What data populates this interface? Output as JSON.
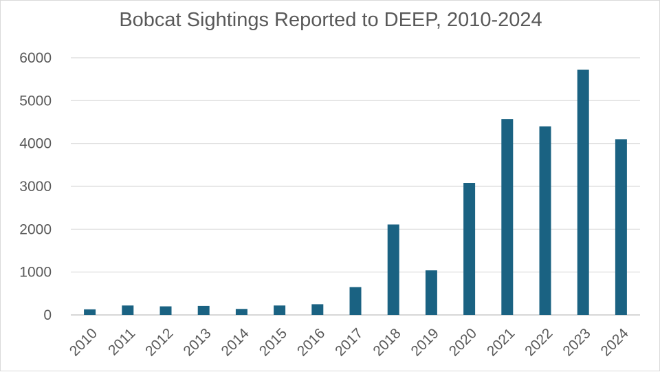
{
  "chart_data": {
    "type": "bar",
    "title": "Bobcat Sightings Reported to DEEP, 2010-2024",
    "xlabel": "",
    "ylabel": "",
    "categories": [
      "2010",
      "2011",
      "2012",
      "2013",
      "2014",
      "2015",
      "2016",
      "2017",
      "2018",
      "2019",
      "2020",
      "2021",
      "2022",
      "2023",
      "2024"
    ],
    "series": [
      {
        "name": "Bobcat Sightings",
        "values": [
          130,
          220,
          200,
          210,
          140,
          220,
          250,
          650,
          2110,
          1040,
          3080,
          4570,
          4400,
          5720,
          4100
        ],
        "color": "#1a6282"
      }
    ],
    "ylim": [
      0,
      6000
    ],
    "yticks": [
      0,
      1000,
      2000,
      3000,
      4000,
      5000,
      6000
    ],
    "grid": true,
    "legend": "none"
  },
  "colors": {
    "bar": "#1a6282",
    "grid": "#d9d9d9",
    "text": "#595959"
  }
}
